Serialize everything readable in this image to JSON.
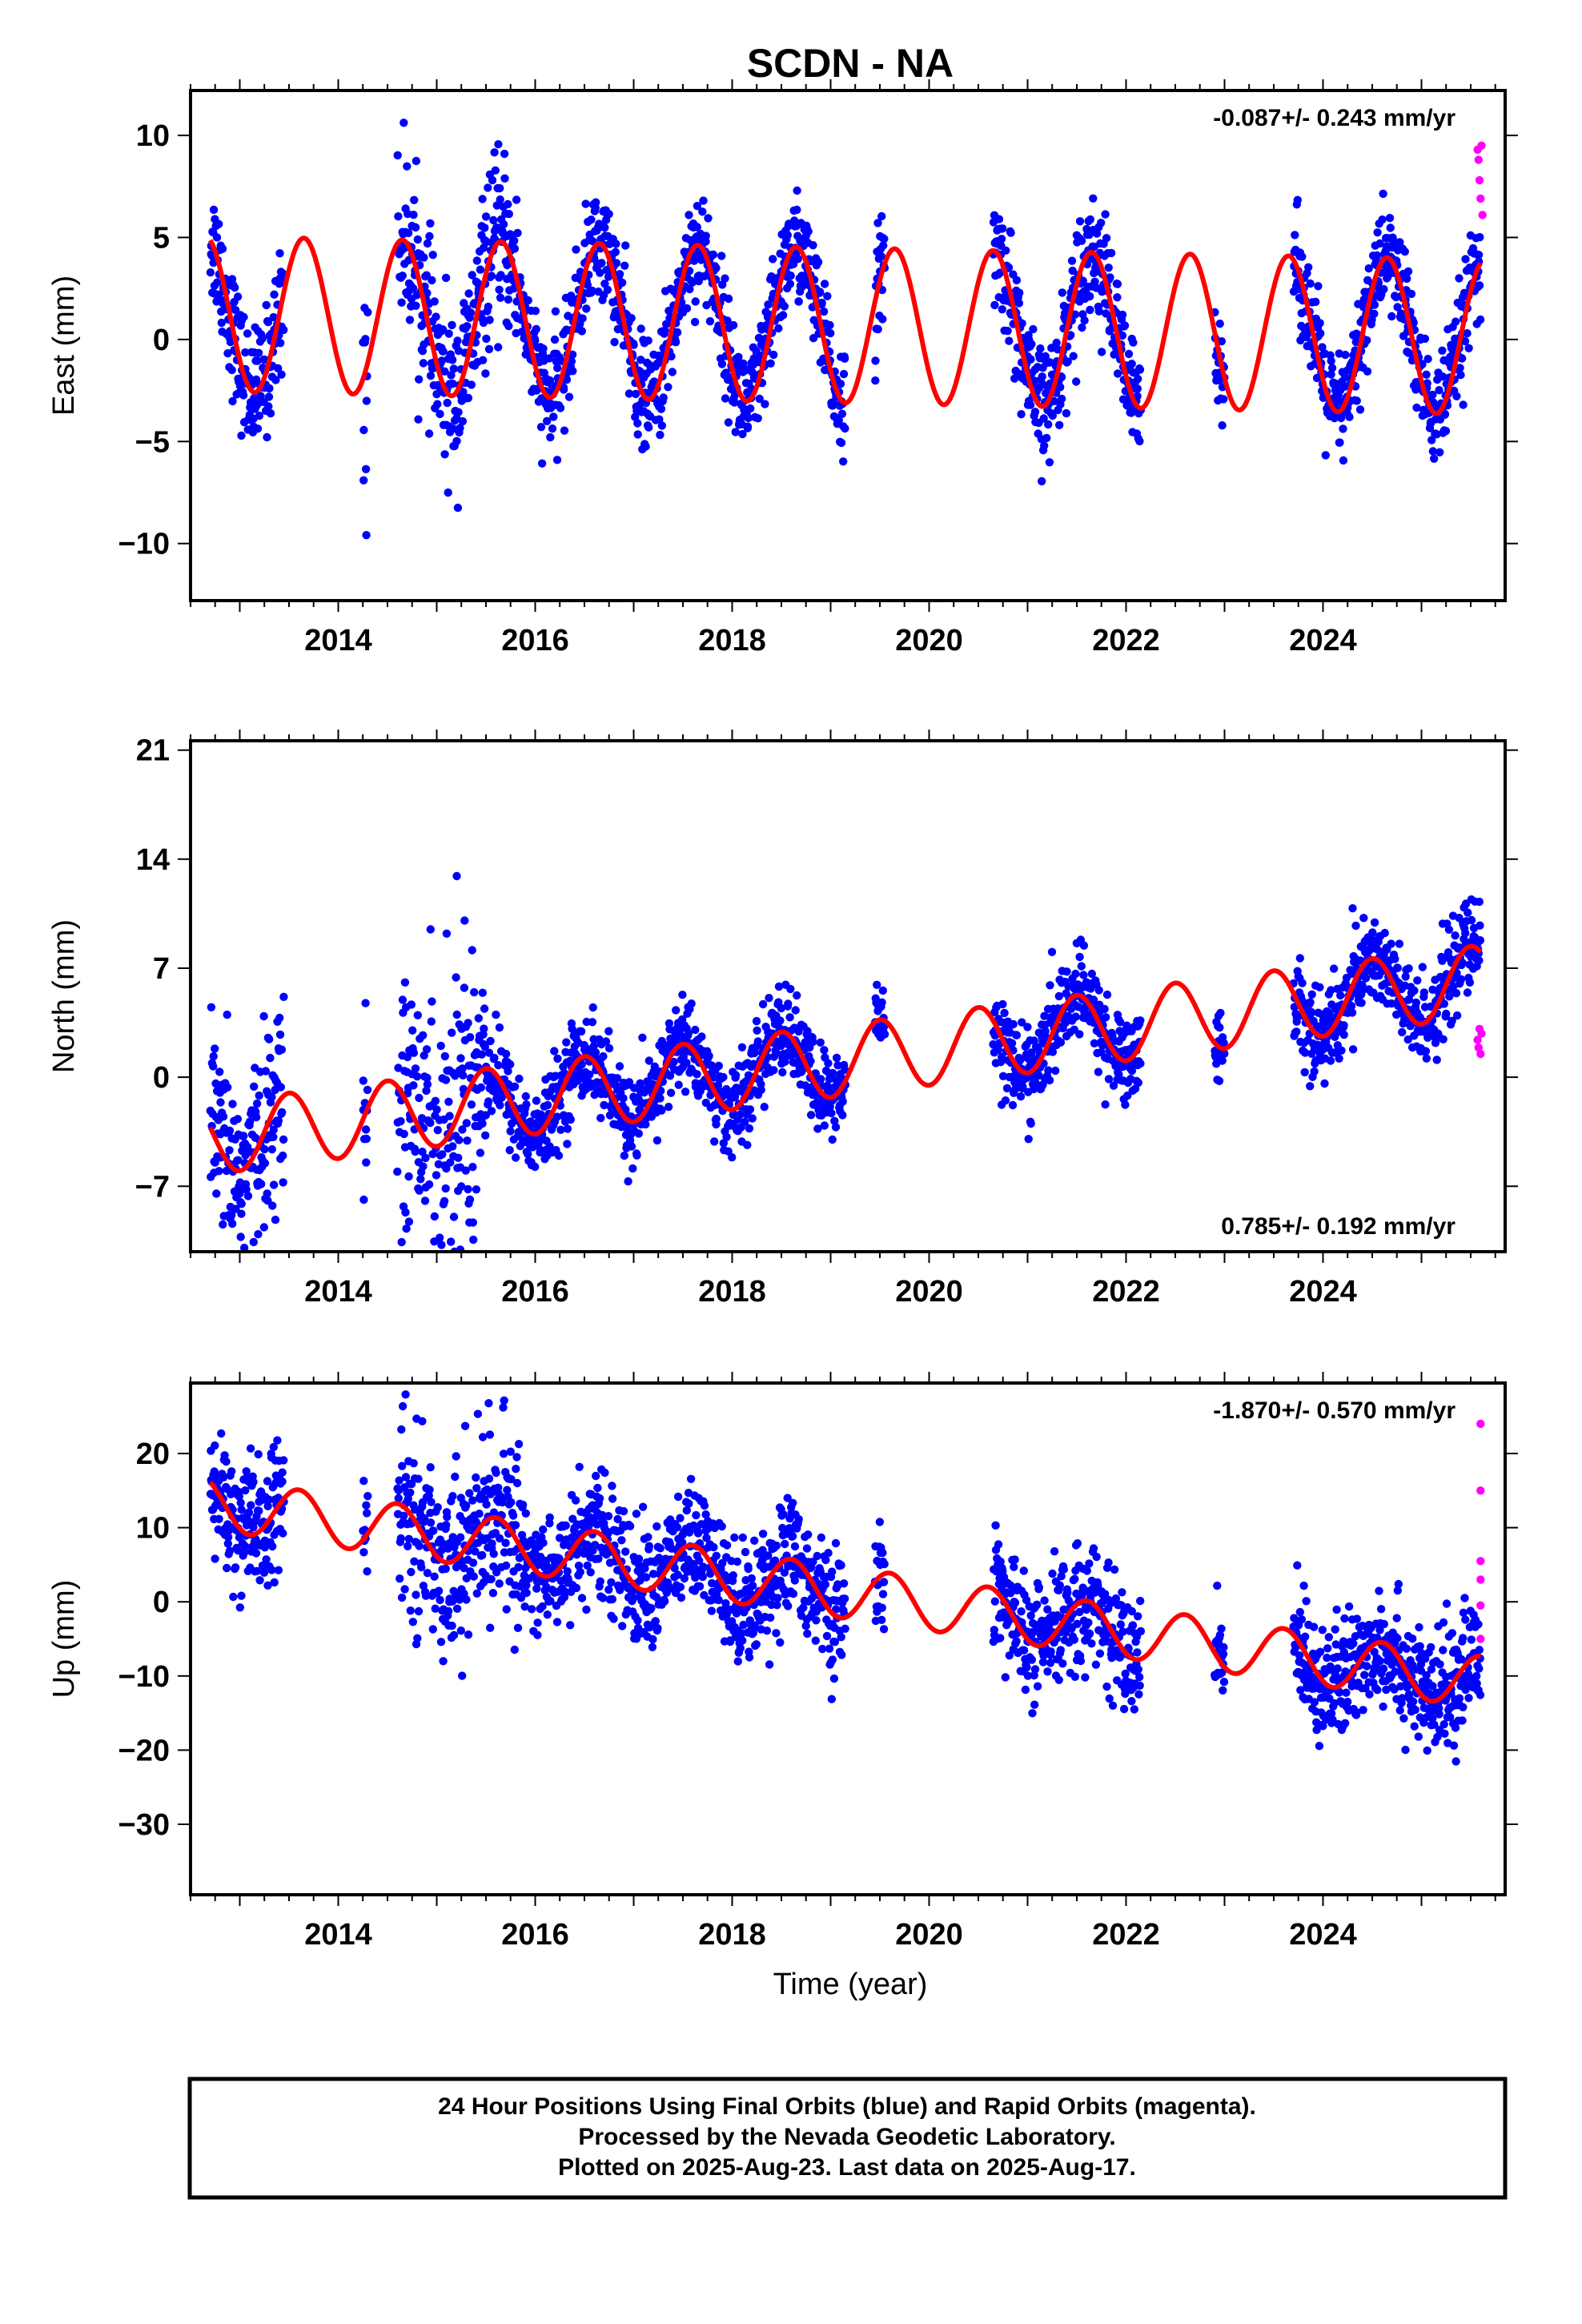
{
  "title": "SCDN - NA",
  "xlabel": "Time (year)",
  "footer": {
    "line1": "24 Hour Positions Using Final Orbits (blue) and Rapid Orbits (magenta).",
    "line2": "Processed by the Nevada Geodetic Laboratory.",
    "line3": "Plotted on 2025-Aug-23. Last data on 2025-Aug-17."
  },
  "colors": {
    "final_orbits": "#0000ff",
    "rapid_orbits": "#ff00ff",
    "model_fit": "#ff0000"
  },
  "chart_data": [
    {
      "type": "scatter",
      "component": "east",
      "ylabel": "East (mm)",
      "rate_text": "-0.087+/- 0.243 mm/yr",
      "xlim": [
        2012.5,
        2025.85
      ],
      "ylim": [
        -12.8,
        12.2
      ],
      "x_ticks": [
        2014,
        2016,
        2018,
        2020,
        2022,
        2024
      ],
      "y_ticks": [
        -10,
        -5,
        0,
        5,
        10
      ],
      "fit_model": {
        "offset": 0.7,
        "rate": -0.087,
        "ref_year": 2019,
        "amplitude": 3.8,
        "period_years": 1.0,
        "peak_phase_year": 0.65
      },
      "data_segments": [
        {
          "start": 2012.7,
          "end": 2013.45,
          "noise": 1.5
        },
        {
          "start": 2014.25,
          "end": 2014.3,
          "noise": 4.5
        },
        {
          "start": 2014.6,
          "end": 2015.85,
          "noise": 2.0
        },
        {
          "start": 2015.85,
          "end": 2019.15,
          "noise": 1.3
        },
        {
          "start": 2019.45,
          "end": 2019.55,
          "noise": 1.5
        },
        {
          "start": 2020.65,
          "end": 2022.15,
          "noise": 1.4
        },
        {
          "start": 2022.9,
          "end": 2023.0,
          "noise": 1.2
        },
        {
          "start": 2023.7,
          "end": 2025.6,
          "noise": 1.3
        }
      ],
      "rapid_points": [
        {
          "x": 2025.57,
          "y": 9.3
        },
        {
          "x": 2025.58,
          "y": 8.8
        },
        {
          "x": 2025.59,
          "y": 7.8
        },
        {
          "x": 2025.6,
          "y": 6.9
        },
        {
          "x": 2025.61,
          "y": 9.5
        },
        {
          "x": 2025.62,
          "y": 6.1
        }
      ]
    },
    {
      "type": "scatter",
      "component": "north",
      "ylabel": "North (mm)",
      "rate_text": "0.785+/- 0.192 mm/yr",
      "xlim": [
        2012.5,
        2025.85
      ],
      "ylim": [
        -11.2,
        21.6
      ],
      "x_ticks": [
        2014,
        2016,
        2018,
        2020,
        2022,
        2024
      ],
      "y_ticks": [
        -7,
        0,
        7,
        14,
        21
      ],
      "fit_model": {
        "offset": 1.0,
        "rate": 0.785,
        "ref_year": 2019,
        "amplitude": 2.3,
        "period_years": 1.0,
        "peak_phase_year": 0.5
      },
      "data_segments": [
        {
          "start": 2012.7,
          "end": 2013.45,
          "noise": 3.0
        },
        {
          "start": 2014.25,
          "end": 2014.3,
          "noise": 4.0
        },
        {
          "start": 2014.6,
          "end": 2015.5,
          "noise": 5.5
        },
        {
          "start": 2015.5,
          "end": 2019.15,
          "noise": 1.4
        },
        {
          "start": 2019.45,
          "end": 2019.55,
          "noise": 1.3
        },
        {
          "start": 2020.65,
          "end": 2022.15,
          "noise": 1.4
        },
        {
          "start": 2022.9,
          "end": 2023.0,
          "noise": 1.2
        },
        {
          "start": 2023.7,
          "end": 2025.6,
          "noise": 1.5
        }
      ],
      "rapid_points": [
        {
          "x": 2025.57,
          "y": 2.4
        },
        {
          "x": 2025.58,
          "y": 1.9
        },
        {
          "x": 2025.59,
          "y": 3.1
        },
        {
          "x": 2025.6,
          "y": 1.5
        },
        {
          "x": 2025.61,
          "y": 2.8
        }
      ]
    },
    {
      "type": "scatter",
      "component": "up",
      "ylabel": "Up (mm)",
      "rate_text": "-1.870+/- 0.570 mm/yr",
      "xlim": [
        2012.5,
        2025.85
      ],
      "ylim": [
        -39.5,
        29.5
      ],
      "x_ticks": [
        2014,
        2016,
        2018,
        2020,
        2022,
        2024
      ],
      "y_ticks": [
        -30,
        -20,
        -10,
        0,
        10,
        20
      ],
      "fit_model": {
        "offset": 1.5,
        "rate": -1.87,
        "ref_year": 2019,
        "amplitude": 3.5,
        "period_years": 1.0,
        "peak_phase_year": 0.6
      },
      "data_segments": [
        {
          "start": 2012.7,
          "end": 2013.45,
          "noise": 4.5
        },
        {
          "start": 2014.25,
          "end": 2014.3,
          "noise": 4.5
        },
        {
          "start": 2014.6,
          "end": 2015.85,
          "noise": 6.0
        },
        {
          "start": 2015.85,
          "end": 2019.15,
          "noise": 4.0
        },
        {
          "start": 2019.45,
          "end": 2019.55,
          "noise": 3.5
        },
        {
          "start": 2020.65,
          "end": 2022.15,
          "noise": 4.0
        },
        {
          "start": 2022.9,
          "end": 2023.0,
          "noise": 4.0
        },
        {
          "start": 2023.7,
          "end": 2025.6,
          "noise": 4.0
        }
      ],
      "rapid_points": [
        {
          "x": 2025.6,
          "y": 24.0
        },
        {
          "x": 2025.6,
          "y": 15.0
        },
        {
          "x": 2025.6,
          "y": 5.5
        },
        {
          "x": 2025.6,
          "y": 3.0
        },
        {
          "x": 2025.6,
          "y": -0.5
        },
        {
          "x": 2025.6,
          "y": -5.0
        }
      ]
    }
  ]
}
